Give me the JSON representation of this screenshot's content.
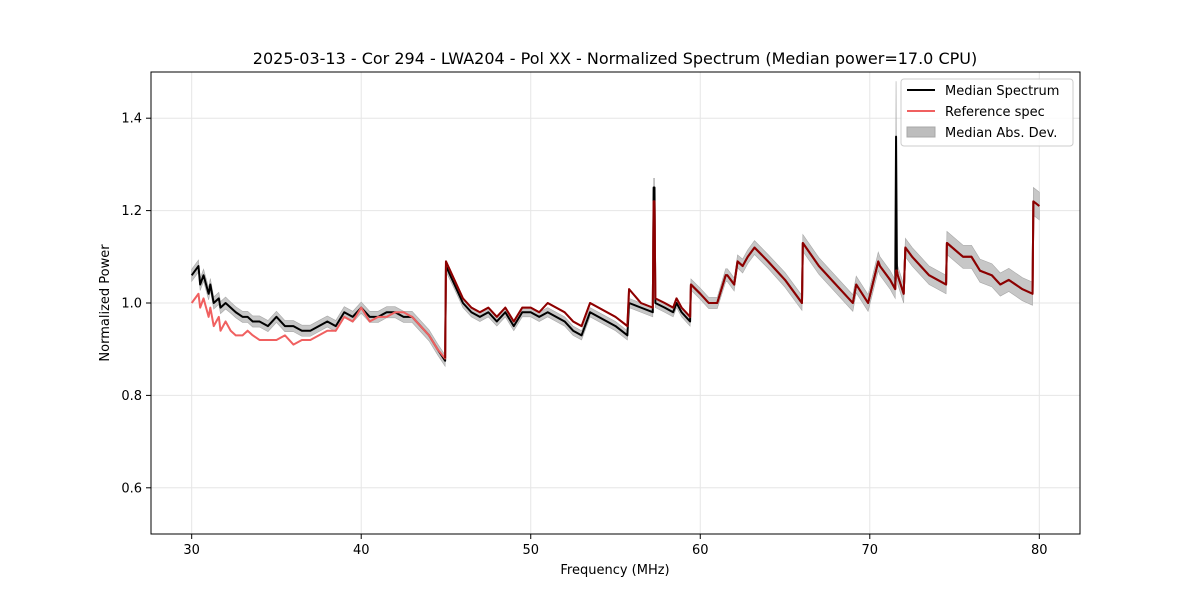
{
  "chart_data": {
    "type": "line",
    "title": "2025-03-13 - Cor 294 - LWA204 - Pol XX - Normalized Spectrum (Median power=17.0 CPU)",
    "xlabel": "Frequency (MHz)",
    "ylabel": "Normalized Power",
    "xlim": [
      27.6,
      82.4
    ],
    "ylim": [
      0.5,
      1.5
    ],
    "xticks": [
      30,
      40,
      50,
      60,
      70,
      80
    ],
    "yticks": [
      0.6,
      0.8,
      1.0,
      1.2,
      1.4
    ],
    "xtick_labels": [
      "30",
      "40",
      "50",
      "60",
      "70",
      "80"
    ],
    "ytick_labels": [
      "0.6",
      "0.8",
      "1.0",
      "1.2",
      "1.4"
    ],
    "grid": true,
    "legend_position": "top-right",
    "legend": [
      "Median Spectrum",
      "Reference spec",
      "Median Abs. Dev."
    ],
    "colors": {
      "median": "#000000",
      "reference": "#f06060",
      "mad": "#bdbdbd",
      "overlap": "#8b0000"
    },
    "series": [
      {
        "name": "Median Spectrum",
        "x": [
          30.0,
          30.2,
          30.4,
          30.5,
          30.7,
          31.0,
          31.1,
          31.3,
          31.6,
          31.7,
          32.0,
          32.3,
          32.6,
          33.0,
          33.3,
          33.6,
          34.0,
          34.5,
          35.0,
          35.5,
          36.0,
          36.5,
          37.0,
          37.5,
          38.0,
          38.5,
          39.0,
          39.5,
          40.0,
          40.5,
          41.0,
          41.5,
          42.0,
          42.5,
          43.0,
          43.5,
          44.0,
          44.5,
          44.95,
          45.0,
          45.5,
          46.0,
          46.5,
          47.0,
          47.5,
          48.0,
          48.5,
          49.0,
          49.5,
          50.0,
          50.5,
          51.0,
          51.5,
          52.0,
          52.5,
          53.0,
          53.5,
          54.0,
          54.5,
          55.0,
          55.7,
          55.8,
          56.5,
          57.2,
          57.25,
          57.3,
          57.35,
          57.9,
          58.4,
          58.6,
          58.9,
          59.4,
          59.45,
          60.0,
          60.5,
          61.0,
          61.5,
          61.6,
          62.0,
          62.2,
          62.5,
          62.8,
          63.2,
          64.0,
          65.0,
          66.0,
          66.05,
          67.0,
          68.0,
          69.0,
          69.2,
          69.9,
          70.5,
          70.6,
          71.2,
          71.5,
          71.55,
          71.6,
          71.65,
          72.0,
          72.1,
          72.5,
          73.0,
          73.5,
          74.0,
          74.5,
          74.55,
          75.5,
          76.0,
          76.5,
          77.2,
          77.7,
          78.2,
          79.0,
          79.6,
          79.65,
          80.0
        ],
        "values": [
          1.06,
          1.07,
          1.08,
          1.04,
          1.06,
          1.02,
          1.04,
          1.0,
          1.01,
          0.99,
          1.0,
          0.99,
          0.98,
          0.97,
          0.97,
          0.96,
          0.96,
          0.95,
          0.97,
          0.95,
          0.95,
          0.94,
          0.94,
          0.95,
          0.96,
          0.95,
          0.98,
          0.97,
          0.99,
          0.97,
          0.97,
          0.98,
          0.98,
          0.97,
          0.97,
          0.95,
          0.93,
          0.9,
          0.875,
          1.08,
          1.04,
          1.0,
          0.98,
          0.97,
          0.98,
          0.96,
          0.98,
          0.95,
          0.98,
          0.98,
          0.97,
          0.98,
          0.97,
          0.96,
          0.94,
          0.93,
          0.98,
          0.97,
          0.96,
          0.95,
          0.93,
          1.0,
          0.99,
          0.98,
          1.25,
          1.25,
          1.0,
          0.99,
          0.98,
          1.0,
          0.98,
          0.96,
          1.04,
          1.02,
          1.0,
          1.0,
          1.06,
          1.06,
          1.04,
          1.09,
          1.08,
          1.1,
          1.12,
          1.09,
          1.05,
          1.0,
          1.13,
          1.08,
          1.04,
          1.0,
          1.04,
          1.0,
          1.09,
          1.08,
          1.05,
          1.03,
          1.36,
          1.07,
          1.06,
          1.02,
          1.12,
          1.1,
          1.08,
          1.06,
          1.05,
          1.04,
          1.13,
          1.1,
          1.1,
          1.07,
          1.06,
          1.04,
          1.05,
          1.03,
          1.02,
          1.22,
          1.21
        ]
      },
      {
        "name": "Reference spec",
        "x": [
          30.0,
          30.2,
          30.4,
          30.5,
          30.7,
          31.0,
          31.1,
          31.3,
          31.6,
          31.7,
          32.0,
          32.3,
          32.6,
          33.0,
          33.3,
          33.6,
          34.0,
          34.5,
          35.0,
          35.5,
          36.0,
          36.5,
          37.0,
          37.5,
          38.0,
          38.5,
          39.0,
          39.5,
          40.0,
          40.5,
          41.0,
          41.5,
          42.0,
          42.5,
          43.0,
          43.5,
          44.0,
          44.5,
          44.95,
          45.0,
          45.5,
          46.0,
          46.5,
          47.0,
          47.5,
          48.0,
          48.5,
          49.0,
          49.5,
          50.0,
          50.5,
          51.0,
          51.5,
          52.0,
          52.5,
          53.0,
          53.5,
          54.0,
          54.5,
          55.0,
          55.7,
          55.8,
          56.5,
          57.2,
          57.25,
          57.3,
          57.35,
          57.9,
          58.4,
          58.6,
          58.9,
          59.4,
          59.45,
          60.0,
          60.5,
          61.0,
          61.5,
          61.6,
          62.0,
          62.2,
          62.5,
          62.8,
          63.2,
          64.0,
          65.0,
          66.0,
          66.05,
          67.0,
          68.0,
          69.0,
          69.2,
          69.9,
          70.5,
          70.6,
          71.2,
          71.5,
          71.55,
          71.6,
          71.65,
          72.0,
          72.1,
          72.5,
          73.0,
          73.5,
          74.0,
          74.5,
          74.55,
          75.5,
          76.0,
          76.5,
          77.2,
          77.7,
          78.2,
          79.0,
          79.6,
          79.65,
          80.0
        ],
        "values": [
          1.0,
          1.01,
          1.02,
          0.99,
          1.01,
          0.97,
          0.99,
          0.95,
          0.97,
          0.94,
          0.96,
          0.94,
          0.93,
          0.93,
          0.94,
          0.93,
          0.92,
          0.92,
          0.92,
          0.93,
          0.91,
          0.92,
          0.92,
          0.93,
          0.94,
          0.94,
          0.97,
          0.96,
          0.99,
          0.96,
          0.97,
          0.97,
          0.98,
          0.98,
          0.97,
          0.95,
          0.93,
          0.9,
          0.88,
          1.09,
          1.05,
          1.01,
          0.99,
          0.98,
          0.99,
          0.97,
          0.99,
          0.96,
          0.99,
          0.99,
          0.98,
          1.0,
          0.99,
          0.98,
          0.96,
          0.95,
          1.0,
          0.99,
          0.98,
          0.97,
          0.95,
          1.03,
          1.0,
          0.99,
          1.22,
          1.22,
          1.01,
          1.0,
          0.99,
          1.01,
          0.99,
          0.97,
          1.04,
          1.02,
          1.0,
          1.0,
          1.06,
          1.06,
          1.04,
          1.09,
          1.08,
          1.1,
          1.12,
          1.09,
          1.05,
          1.0,
          1.13,
          1.08,
          1.04,
          1.0,
          1.04,
          1.0,
          1.09,
          1.08,
          1.05,
          1.03,
          1.07,
          1.07,
          1.06,
          1.02,
          1.12,
          1.1,
          1.08,
          1.06,
          1.05,
          1.04,
          1.13,
          1.1,
          1.1,
          1.07,
          1.06,
          1.04,
          1.05,
          1.03,
          1.02,
          1.22,
          1.21
        ]
      }
    ],
    "mad_band": {
      "name": "Median Abs. Dev.",
      "width": [
        0.013,
        0.013,
        0.013,
        0.013,
        0.013,
        0.013,
        0.013,
        0.013,
        0.013,
        0.013,
        0.013,
        0.012,
        0.012,
        0.012,
        0.012,
        0.012,
        0.012,
        0.012,
        0.012,
        0.012,
        0.012,
        0.012,
        0.012,
        0.012,
        0.012,
        0.012,
        0.012,
        0.012,
        0.012,
        0.012,
        0.012,
        0.012,
        0.012,
        0.012,
        0.012,
        0.012,
        0.012,
        0.012,
        0.012,
        0.012,
        0.01,
        0.01,
        0.01,
        0.01,
        0.01,
        0.01,
        0.01,
        0.01,
        0.01,
        0.01,
        0.01,
        0.01,
        0.01,
        0.01,
        0.01,
        0.01,
        0.01,
        0.01,
        0.01,
        0.01,
        0.01,
        0.01,
        0.01,
        0.01,
        0.02,
        0.02,
        0.01,
        0.01,
        0.01,
        0.01,
        0.01,
        0.01,
        0.012,
        0.012,
        0.012,
        0.012,
        0.014,
        0.014,
        0.014,
        0.014,
        0.015,
        0.015,
        0.015,
        0.015,
        0.016,
        0.016,
        0.018,
        0.018,
        0.018,
        0.018,
        0.018,
        0.018,
        0.02,
        0.02,
        0.02,
        0.02,
        0.12,
        0.02,
        0.02,
        0.02,
        0.02,
        0.02,
        0.02,
        0.02,
        0.02,
        0.02,
        0.025,
        0.025,
        0.025,
        0.025,
        0.025,
        0.025,
        0.025,
        0.025,
        0.025,
        0.03,
        0.03
      ]
    }
  }
}
